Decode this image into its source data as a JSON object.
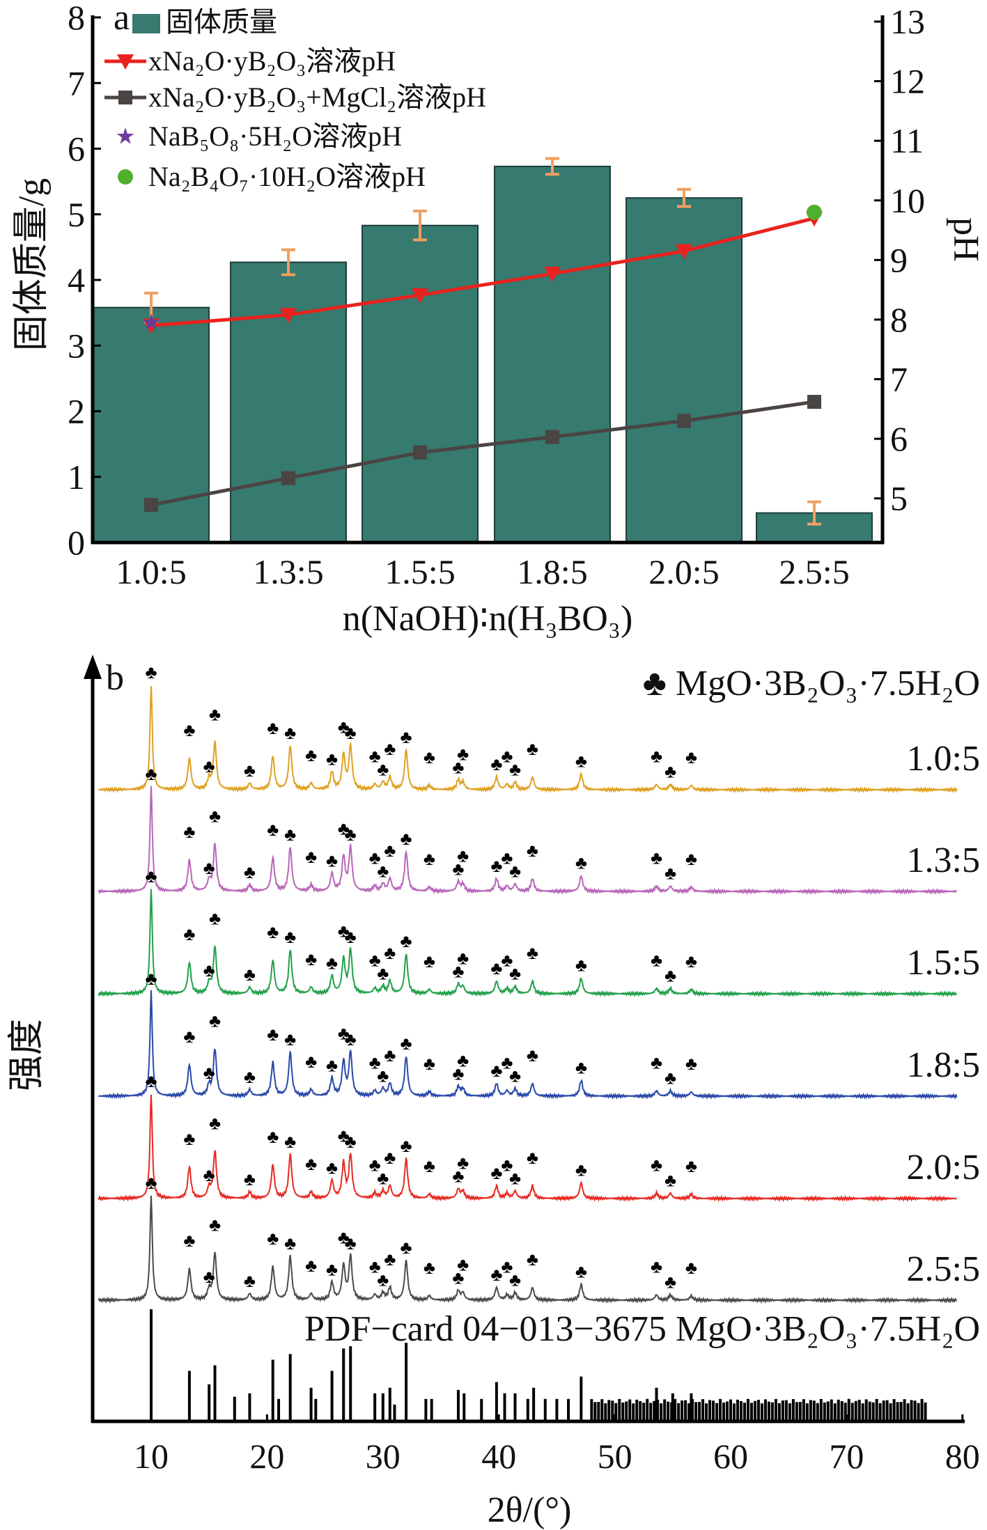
{
  "chart_data": [
    {
      "type": "bar",
      "panel_label": "a",
      "categories": [
        "1.0:5",
        "1.3:5",
        "1.5:5",
        "1.8:5",
        "2.0:5",
        "2.5:5"
      ],
      "xlabel": "n(NaOH)∶n(H₃BO₃)",
      "ylabel": "固体质量/g",
      "y2label": "pH",
      "ylim": [
        0,
        8
      ],
      "yticks": [
        "0",
        "1",
        "2",
        "3",
        "4",
        "5",
        "6",
        "7",
        "8"
      ],
      "y2lim": [
        4.26,
        13
      ],
      "y2ticks": [
        "5",
        "6",
        "7",
        "8",
        "9",
        "10",
        "11",
        "12",
        "13"
      ],
      "bars": {
        "name": "固体质量",
        "color": "#367a70",
        "values": [
          3.58,
          4.27,
          4.83,
          5.73,
          5.25,
          0.45
        ],
        "errors": [
          0.22,
          0.19,
          0.22,
          0.12,
          0.13,
          0.17
        ],
        "error_color": "#f0a060"
      },
      "series": [
        {
          "name": "xNa₂O·yB₂O₃溶液pH",
          "color": "#e8231e",
          "marker": "triangle-down",
          "axis": "right",
          "values": [
            7.9,
            8.08,
            8.41,
            8.77,
            9.15,
            9.7
          ]
        },
        {
          "name": "xNa₂O·yB₂O₃+MgCl₂溶液pH",
          "color": "#4a4442",
          "marker": "square",
          "axis": "right",
          "values": [
            4.89,
            5.34,
            5.77,
            6.03,
            6.3,
            6.62
          ]
        },
        {
          "name": "NaB₅O₈·5H₂O溶液pH",
          "color": "#6a3d9a",
          "marker": "star",
          "axis": "right",
          "points": [
            {
              "category": "1.0:5",
              "value": 7.95
            }
          ]
        },
        {
          "name": "Na₂B₄O₇·10H₂O溶液pH",
          "color": "#4fb02d",
          "marker": "circle",
          "axis": "right",
          "points": [
            {
              "category": "2.5:5",
              "value": 9.8
            }
          ]
        }
      ],
      "legend": "top-left"
    },
    {
      "type": "line",
      "panel_label": "b",
      "xlabel": "2θ/(°)",
      "ylabel": "强度",
      "xlim": [
        4.95,
        80
      ],
      "xticks": [
        "10",
        "20",
        "30",
        "40",
        "50",
        "60",
        "70",
        "80"
      ],
      "phase_legend": "♣ MgO·3B₂O₃·7.5H₂O",
      "peaks": [
        [
          10.0,
          1.0
        ],
        [
          13.3,
          0.3
        ],
        [
          15.0,
          0.1
        ],
        [
          15.5,
          0.45
        ],
        [
          18.5,
          0.06
        ],
        [
          20.5,
          0.32
        ],
        [
          22.0,
          0.42
        ],
        [
          23.8,
          0.06
        ],
        [
          25.6,
          0.17
        ],
        [
          26.6,
          0.33
        ],
        [
          27.2,
          0.42
        ],
        [
          29.3,
          0.05
        ],
        [
          30.0,
          0.07
        ],
        [
          30.6,
          0.12
        ],
        [
          32.0,
          0.38
        ],
        [
          34.0,
          0.04
        ],
        [
          36.5,
          0.09
        ],
        [
          36.9,
          0.07
        ],
        [
          39.8,
          0.12
        ],
        [
          40.7,
          0.05
        ],
        [
          41.4,
          0.07
        ],
        [
          42.9,
          0.12
        ],
        [
          47.1,
          0.15
        ],
        [
          53.6,
          0.05
        ],
        [
          54.8,
          0.05
        ],
        [
          56.6,
          0.04
        ]
      ],
      "series": [
        {
          "name": "1.0:5",
          "color": "#e0a020"
        },
        {
          "name": "1.3:5",
          "color": "#b866b8"
        },
        {
          "name": "1.5:5",
          "color": "#22a04a"
        },
        {
          "name": "1.8:5",
          "color": "#2a48a8"
        },
        {
          "name": "2.0:5",
          "color": "#e62a22"
        },
        {
          "name": "2.5:5",
          "color": "#4a4a4a"
        }
      ],
      "reference": {
        "label": "PDF−card 04−013−3675 MgO·3B₂O₃·7.5H₂O",
        "sticks": [
          [
            10.0,
            1.0
          ],
          [
            13.3,
            0.45
          ],
          [
            15.0,
            0.33
          ],
          [
            15.5,
            0.5
          ],
          [
            17.2,
            0.22
          ],
          [
            18.5,
            0.25
          ],
          [
            20.5,
            0.55
          ],
          [
            21.0,
            0.2
          ],
          [
            22.0,
            0.6
          ],
          [
            23.8,
            0.3
          ],
          [
            24.2,
            0.2
          ],
          [
            25.6,
            0.45
          ],
          [
            26.6,
            0.65
          ],
          [
            27.2,
            0.67
          ],
          [
            29.3,
            0.25
          ],
          [
            30.0,
            0.25
          ],
          [
            30.6,
            0.3
          ],
          [
            31.0,
            0.15
          ],
          [
            32.0,
            0.7
          ],
          [
            33.7,
            0.2
          ],
          [
            34.2,
            0.2
          ],
          [
            36.5,
            0.28
          ],
          [
            37.0,
            0.25
          ],
          [
            38.5,
            0.2
          ],
          [
            39.8,
            0.35
          ],
          [
            40.5,
            0.25
          ],
          [
            41.4,
            0.25
          ],
          [
            42.5,
            0.2
          ],
          [
            43.0,
            0.3
          ],
          [
            44.0,
            0.2
          ],
          [
            45.0,
            0.2
          ],
          [
            46.0,
            0.2
          ],
          [
            47.1,
            0.4
          ],
          [
            53.6,
            0.3
          ],
          [
            55.0,
            0.25
          ],
          [
            56.6,
            0.25
          ]
        ],
        "dense_region": {
          "from": 48,
          "to": 77,
          "step": 0.3,
          "intensity": 0.2
        }
      }
    }
  ]
}
